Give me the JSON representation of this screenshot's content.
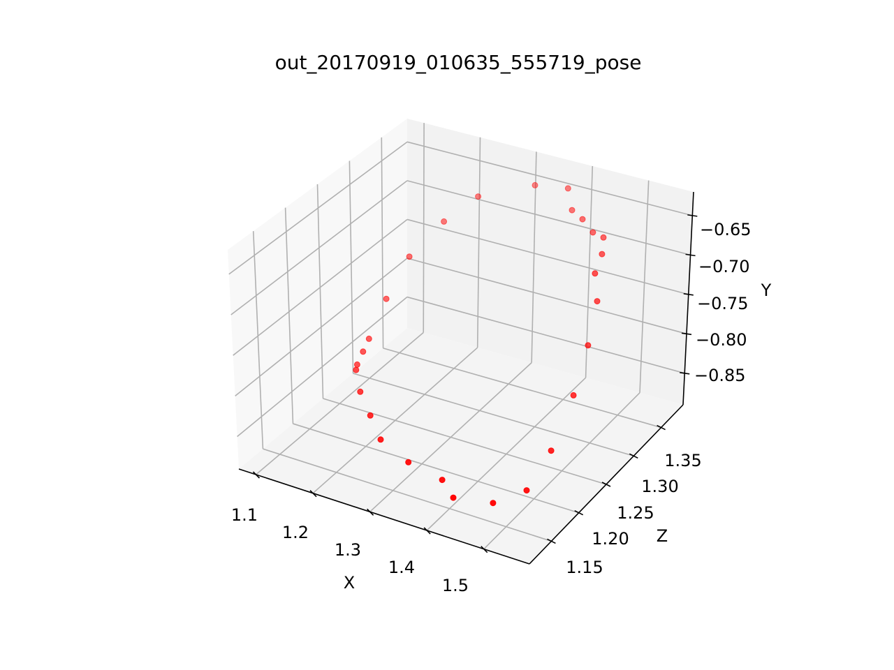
{
  "chart_data": {
    "type": "scatter",
    "projection": "3d",
    "title": "out_20170919_010635_555719_pose",
    "xlabel": "X",
    "ylabel": "Y",
    "zlabel": "Z",
    "x_ticks": [
      "1.1",
      "1.2",
      "1.3",
      "1.4",
      "1.5"
    ],
    "y_ticks": [
      "−0.65",
      "−0.70",
      "−0.75",
      "−0.80",
      "−0.85"
    ],
    "z_ticks": [
      "1.15",
      "1.20",
      "1.25",
      "1.30",
      "1.35"
    ],
    "grid": true,
    "marker_color": "#ff0000",
    "pane_colors": {
      "back": "#f2f2f2",
      "left": "#f8f8f8",
      "floor": "#f4f4f4"
    },
    "points": [
      {
        "x": 1.1,
        "y": -0.84,
        "z": 1.3
      },
      {
        "x": 1.11,
        "y": -0.8,
        "z": 1.32
      },
      {
        "x": 1.13,
        "y": -0.755,
        "z": 1.34
      },
      {
        "x": 1.17,
        "y": -0.715,
        "z": 1.36
      },
      {
        "x": 1.22,
        "y": -0.68,
        "z": 1.37
      },
      {
        "x": 1.31,
        "y": -0.655,
        "z": 1.38
      },
      {
        "x": 1.38,
        "y": -0.64,
        "z": 1.37
      },
      {
        "x": 1.41,
        "y": -0.65,
        "z": 1.35
      },
      {
        "x": 1.44,
        "y": -0.65,
        "z": 1.34
      },
      {
        "x": 1.47,
        "y": -0.655,
        "z": 1.33
      },
      {
        "x": 1.5,
        "y": -0.65,
        "z": 1.32
      },
      {
        "x": 1.52,
        "y": -0.655,
        "z": 1.3
      },
      {
        "x": 1.53,
        "y": -0.665,
        "z": 1.28
      },
      {
        "x": 1.545,
        "y": -0.69,
        "z": 1.27
      },
      {
        "x": 1.55,
        "y": -0.73,
        "z": 1.25
      },
      {
        "x": 1.555,
        "y": -0.77,
        "z": 1.22
      },
      {
        "x": 1.555,
        "y": -0.81,
        "z": 1.18
      },
      {
        "x": 1.54,
        "y": -0.84,
        "z": 1.15
      },
      {
        "x": 1.5,
        "y": -0.85,
        "z": 1.13
      },
      {
        "x": 1.44,
        "y": -0.85,
        "z": 1.12
      },
      {
        "x": 1.4,
        "y": -0.85,
        "z": 1.14
      },
      {
        "x": 1.33,
        "y": -0.85,
        "z": 1.15
      },
      {
        "x": 1.26,
        "y": -0.85,
        "z": 1.17
      },
      {
        "x": 1.21,
        "y": -0.85,
        "z": 1.2
      },
      {
        "x": 1.16,
        "y": -0.85,
        "z": 1.23
      },
      {
        "x": 1.12,
        "y": -0.85,
        "z": 1.26
      },
      {
        "x": 1.1,
        "y": -0.86,
        "z": 1.28
      },
      {
        "x": 1.1,
        "y": -0.85,
        "z": 1.29
      }
    ]
  }
}
